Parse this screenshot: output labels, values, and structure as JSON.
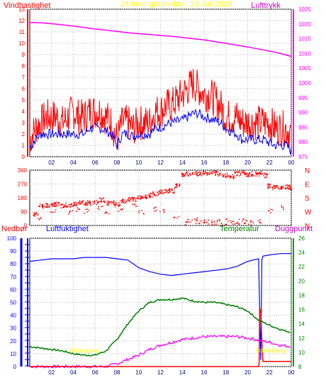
{
  "title": "24 hour graph day : 23 Juli 2020",
  "x_ticks": [
    "02",
    "04",
    "06",
    "08",
    "10",
    "12",
    "14",
    "16",
    "18",
    "20",
    "22",
    "00"
  ],
  "colors": {
    "wind": "#ff0000",
    "wind_avg": "#0000ff",
    "pressure": "#ff00ff",
    "direction": "#ff0000",
    "humidity": "#0000ff",
    "temperature": "#008000",
    "dewpoint": "#ff00ff",
    "rain": "#ff0000",
    "title": "#ffff00"
  },
  "chart_data": [
    {
      "type": "line",
      "title": "24 hour graph day : 23 Juli 2020",
      "left_axis_label": "Vindhastighet",
      "right_axis_label": "Lufttrykk",
      "left_ticks": [
        "0",
        "1",
        "2",
        "3",
        "4",
        "5",
        "6",
        "7",
        "8",
        "9",
        "10",
        "11",
        "12",
        "13"
      ],
      "right_ticks": [
        "975",
        "980",
        "985",
        "990",
        "995",
        "1000",
        "1005",
        "1010",
        "1015",
        "1020",
        "1025"
      ],
      "ylim_left": [
        0,
        13
      ],
      "ylim_right": [
        975,
        1025
      ],
      "grid": true,
      "series": [
        {
          "key": "wind_gust",
          "axis": "left",
          "x": [
            0,
            0.5,
            1,
            1.5,
            2,
            2.5,
            3,
            3.5,
            4,
            4.5,
            5,
            5.5,
            6,
            6.5,
            7,
            7.5,
            8,
            8.5,
            9,
            9.5,
            10,
            10.5,
            11,
            11.5,
            12,
            12.5,
            13,
            13.5,
            14,
            14.5,
            15,
            15.5,
            16,
            16.5,
            17,
            17.5,
            18,
            18.5,
            19,
            19.5,
            20,
            20.5,
            21,
            21.5,
            22,
            22.5,
            23,
            23.5,
            24
          ],
          "y": [
            1.5,
            2.5,
            3,
            3.5,
            3.5,
            3.5,
            3,
            3.5,
            4,
            3.5,
            3.5,
            4,
            4,
            4,
            3.5,
            3,
            1.5,
            3,
            3,
            2.5,
            3,
            3,
            3,
            4,
            4,
            4.5,
            4.5,
            5,
            5.5,
            6,
            6.5,
            6,
            5.5,
            5.5,
            5,
            4.5,
            3.5,
            3.5,
            3.5,
            3,
            3,
            3,
            3,
            3,
            3,
            2.5,
            2.5,
            2.5,
            2
          ]
        },
        {
          "key": "wind_avg",
          "axis": "left",
          "x": [
            0,
            0.5,
            1,
            1.5,
            2,
            2.5,
            3,
            3.5,
            4,
            4.5,
            5,
            5.5,
            6,
            6.5,
            7,
            7.5,
            8,
            8.5,
            9,
            9.5,
            10,
            10.5,
            11,
            11.5,
            12,
            12.5,
            13,
            13.5,
            14,
            14.5,
            15,
            15.5,
            16,
            16.5,
            17,
            17.5,
            18,
            18.5,
            19,
            19.5,
            20,
            20.5,
            21,
            21.5,
            22,
            22.5,
            23,
            23.5,
            24
          ],
          "y": [
            0.8,
            1.5,
            2,
            2,
            2,
            2,
            2,
            2,
            2,
            2,
            2,
            2.5,
            2.5,
            2.5,
            2.3,
            2,
            1,
            2,
            2,
            1.8,
            2,
            2,
            2,
            2.5,
            2.6,
            2.8,
            3,
            3.1,
            3.2,
            3.5,
            3.8,
            3.8,
            3.5,
            3.4,
            3.2,
            3,
            2.5,
            2.2,
            2,
            1.5,
            1.5,
            1.5,
            1.5,
            1.5,
            1.2,
            1,
            1,
            1,
            0.5
          ]
        },
        {
          "key": "pressure",
          "axis": "right",
          "x": [
            0,
            1,
            2,
            3,
            4,
            5,
            6,
            7,
            8,
            9,
            10,
            11,
            12,
            13,
            14,
            15,
            16,
            17,
            18,
            19,
            20,
            21,
            22,
            23,
            24
          ],
          "y": [
            1020.5,
            1020.4,
            1020.1,
            1019.7,
            1019.3,
            1018.8,
            1018.3,
            1017.9,
            1017.5,
            1017,
            1016.7,
            1016.4,
            1016.1,
            1015.8,
            1015.4,
            1015,
            1014.6,
            1014,
            1013.4,
            1012.8,
            1012.2,
            1011.5,
            1010.8,
            1010,
            1009
          ]
        }
      ]
    },
    {
      "type": "scatter",
      "left_ticks": [
        "0",
        "90",
        "180",
        "270",
        "360"
      ],
      "right_ticks": [
        "N",
        "W",
        "S",
        "E",
        "N"
      ],
      "ylim": [
        0,
        360
      ],
      "series": [
        {
          "key": "wind_direction",
          "x": [
            0.5,
            1,
            1.5,
            2,
            2.5,
            3,
            3.5,
            4,
            4.5,
            5,
            5.5,
            6,
            6.5,
            7,
            7.5,
            8,
            8.5,
            9,
            9.5,
            10,
            10.5,
            11,
            11.5,
            12,
            12.5,
            13,
            13.5,
            14,
            14.5,
            15,
            15.5,
            16,
            16.5,
            17,
            17.5,
            18,
            18.5,
            19,
            19.5,
            20,
            20.5,
            21,
            21.5,
            22,
            22.5,
            23,
            23.5,
            24
          ],
          "y": [
            75,
            130,
            135,
            140,
            140,
            130,
            135,
            140,
            150,
            150,
            150,
            155,
            170,
            150,
            150,
            140,
            165,
            170,
            175,
            185,
            190,
            200,
            210,
            220,
            225,
            230,
            260,
            330,
            340,
            350,
            340,
            345,
            350,
            345,
            335,
            330,
            320,
            340,
            345,
            335,
            340,
            340,
            330,
            260,
            250,
            255,
            255,
            250
          ]
        },
        {
          "key": "wind_direction_low",
          "x": [
            0.8,
            2.1,
            3.7,
            4.3,
            5.2,
            6.4,
            7.1,
            8.3,
            9.6,
            10.2,
            11.4,
            12.1,
            13.4,
            14.2,
            14.6,
            15.1,
            15.4,
            15.8,
            16.2,
            16.6,
            17,
            17.4,
            17.8,
            18.2,
            18.6,
            19,
            19.4,
            19.8,
            20.3,
            21,
            22,
            23
          ],
          "y": [
            40,
            100,
            90,
            110,
            95,
            120,
            80,
            100,
            130,
            90,
            110,
            95,
            50,
            20,
            30,
            40,
            30,
            25,
            35,
            20,
            25,
            30,
            20,
            35,
            25,
            20,
            30,
            25,
            20,
            30,
            100,
            120
          ]
        }
      ]
    },
    {
      "type": "line",
      "left_axis_label_1": "Nedbør",
      "left_axis_label_2": "Luftfuktighet",
      "right_axis_label_1": "Temperatur",
      "right_axis_label_2": "Duggpunkt",
      "left_ticks": [
        "0",
        "10",
        "20",
        "30",
        "40",
        "50",
        "60",
        "70",
        "80",
        "90",
        "100"
      ],
      "right_ticks": [
        "8",
        "10",
        "12",
        "14",
        "16",
        "18",
        "20",
        "22",
        "24",
        "26"
      ],
      "ylim_left": [
        0,
        100
      ],
      "ylim_right": [
        8,
        26
      ],
      "grid": true,
      "annotations": [
        {
          "text": "Soloppgang"
        },
        {
          "text": "Solnedgang"
        }
      ],
      "series": [
        {
          "key": "humidity",
          "axis": "left",
          "x": [
            0,
            1,
            2,
            3,
            4,
            5,
            6,
            7,
            8,
            9,
            10,
            11,
            12,
            13,
            14,
            15,
            16,
            17,
            18,
            19,
            20,
            21,
            21.2,
            21.3,
            21.4,
            22,
            23,
            24
          ],
          "y": [
            82,
            83,
            84,
            84,
            84,
            85,
            85,
            85,
            84,
            83,
            77,
            74,
            72,
            71,
            72,
            73,
            74,
            75,
            76,
            78,
            82,
            84,
            5,
            83,
            86,
            87,
            88,
            88
          ]
        },
        {
          "key": "temperature",
          "axis": "right",
          "x": [
            0,
            1,
            2,
            3,
            4,
            5,
            6,
            7,
            8,
            9,
            10,
            11,
            12,
            13,
            14,
            15,
            16,
            17,
            18,
            19,
            20,
            21,
            22,
            23,
            24
          ],
          "y": [
            10.8,
            10.6,
            10.4,
            10.2,
            9.8,
            9.6,
            9.6,
            10.2,
            11.8,
            14,
            15.8,
            17,
            17.4,
            17.4,
            17.6,
            17.2,
            17,
            17,
            16.7,
            16.4,
            15.8,
            14.5,
            13.8,
            13.2,
            12.8
          ]
        },
        {
          "key": "dewpoint",
          "axis": "right",
          "x": [
            0,
            1,
            2,
            3,
            4,
            5,
            6,
            7,
            8,
            9,
            10,
            11,
            12,
            13,
            14,
            15,
            16,
            17,
            18,
            19,
            20,
            21,
            22,
            23,
            24
          ],
          "y": [
            8,
            8,
            8,
            8,
            8,
            8,
            8,
            8,
            8.4,
            9,
            9.6,
            10.4,
            11,
            11.4,
            11.8,
            12,
            12.2,
            12.2,
            12.2,
            12.2,
            12,
            11.7,
            11.4,
            11,
            10.8
          ]
        },
        {
          "key": "rain",
          "axis": "left",
          "x": [
            0,
            21,
            21.05,
            21.1,
            21.2,
            21.3,
            21.4,
            22,
            24
          ],
          "y": [
            0,
            0,
            2,
            45,
            44,
            20,
            4,
            4,
            4
          ]
        }
      ]
    }
  ]
}
